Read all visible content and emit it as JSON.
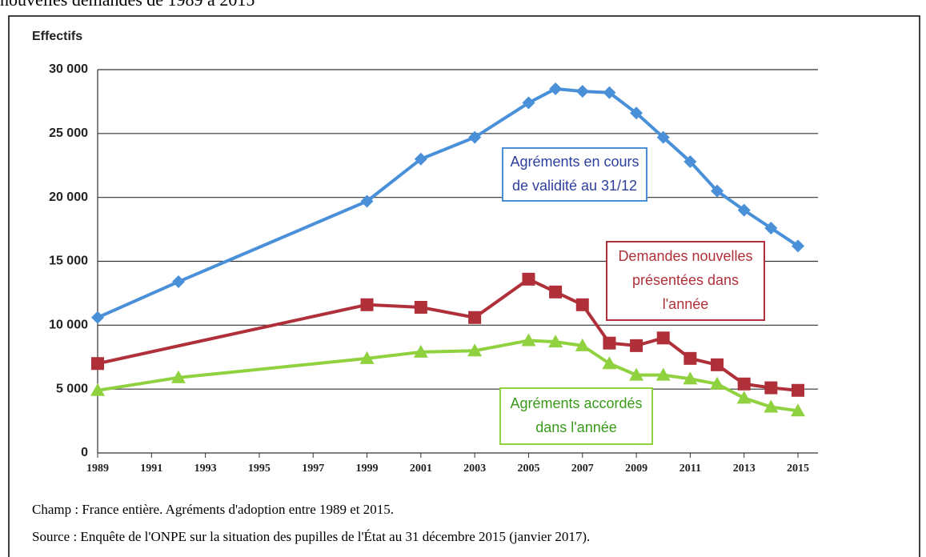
{
  "chart_data": {
    "type": "line",
    "title": "nouvelles demandes de 1989 à 2015",
    "ylabel": "Effectifs",
    "xlim": [
      1989,
      2015
    ],
    "xticks": [
      1989,
      1991,
      1993,
      1995,
      1997,
      1999,
      2001,
      2003,
      2005,
      2007,
      2009,
      2011,
      2013,
      2015
    ],
    "ylim": [
      0,
      30000
    ],
    "yticks": [
      {
        "value": 0,
        "label": "0"
      },
      {
        "value": 5000,
        "label": "5 000"
      },
      {
        "value": 10000,
        "label": "10 000"
      },
      {
        "value": 15000,
        "label": "15 000"
      },
      {
        "value": 20000,
        "label": "20 000"
      },
      {
        "value": 25000,
        "label": "25 000"
      },
      {
        "value": 30000,
        "label": "30 000"
      }
    ],
    "grid": true,
    "series": [
      {
        "color": "#4a90d9",
        "marker": "diamond",
        "x": [
          1989,
          1992,
          1999,
          2001,
          2003,
          2005,
          2006,
          2007,
          2008,
          2009,
          2010,
          2011,
          2012,
          2013,
          2014,
          2015
        ],
        "values": [
          10600,
          13400,
          19700,
          23000,
          24700,
          27400,
          28500,
          28300,
          28200,
          26600,
          24700,
          22800,
          20500,
          19000,
          17600,
          16200
        ]
      },
      {
        "color": "#b0303a",
        "marker": "square",
        "x": [
          1989,
          1999,
          2001,
          2003,
          2005,
          2006,
          2007,
          2008,
          2009,
          2010,
          2011,
          2012,
          2013,
          2014,
          2015
        ],
        "values": [
          7000,
          11600,
          11400,
          10600,
          13600,
          12600,
          11600,
          8600,
          8400,
          9000,
          7400,
          6900,
          5400,
          5100,
          4900
        ]
      },
      {
        "color": "#8fd13f",
        "marker": "triangle",
        "x": [
          1989,
          1992,
          1999,
          2001,
          2003,
          2005,
          2006,
          2007,
          2008,
          2009,
          2010,
          2011,
          2012,
          2013,
          2014,
          2015
        ],
        "values": [
          4900,
          5900,
          7400,
          7900,
          8000,
          8800,
          8700,
          8400,
          7000,
          6100,
          6100,
          5800,
          5400,
          4300,
          3600,
          3300
        ]
      }
    ],
    "annotations": [
      {
        "lines": [
          "Agréments en cours",
          "de validité au 31/12"
        ],
        "color": "#2e3f9e",
        "border": "#4a90d9"
      },
      {
        "lines": [
          "Demandes nouvelles",
          "présentées dans",
          "l'année"
        ],
        "color": "#b0303a",
        "border": "#b0303a"
      },
      {
        "lines": [
          "Agréments accordés",
          "dans l'année"
        ],
        "color": "#3a9a1a",
        "border": "#8fd13f"
      }
    ],
    "notes": [
      "Champ : France entière. Agréments d'adoption entre 1989 et 2015.",
      "Source : Enquête de l'ONPE sur la situation des pupilles de l'État au 31 décembre 2015 (janvier 2017)."
    ]
  }
}
